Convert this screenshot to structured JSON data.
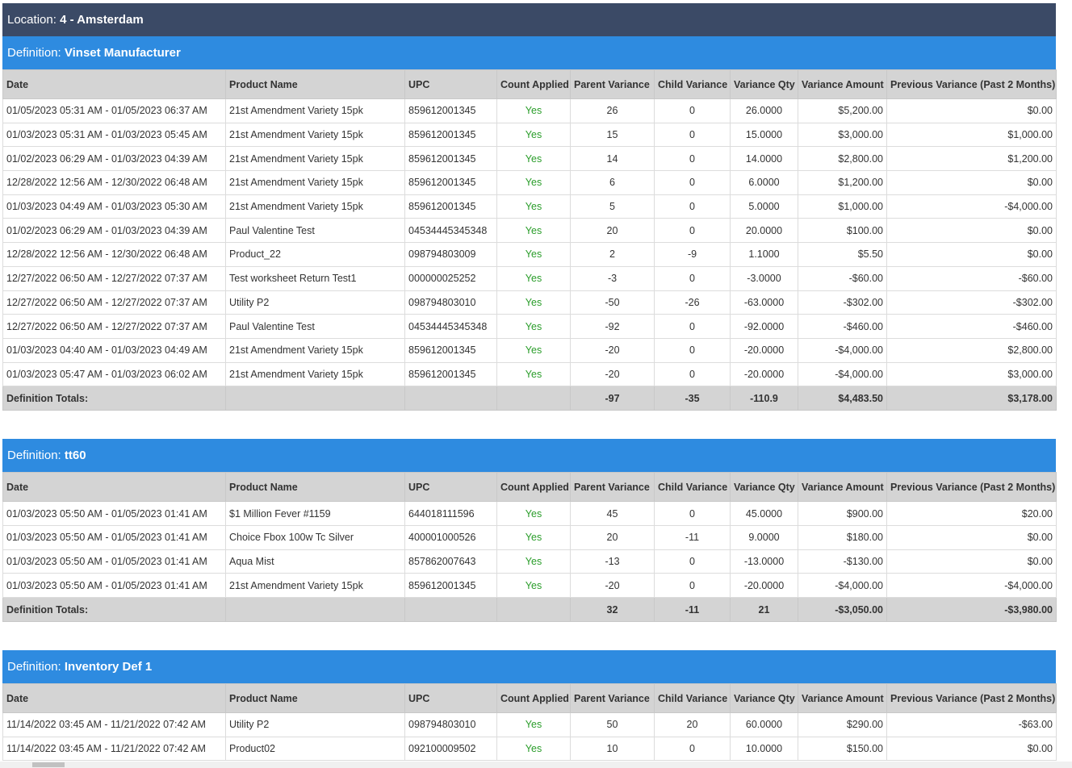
{
  "location": {
    "label": "Location:",
    "value": "4 - Amsterdam"
  },
  "columns": [
    "Date",
    "Product Name",
    "UPC",
    "Count Applied",
    "Parent Variance",
    "Child Variance",
    "Variance Qty",
    "Variance Amount",
    "Previous Variance (Past 2 Months)"
  ],
  "totals_label": "Definition Totals:",
  "definition_label": "Definition:",
  "sections": [
    {
      "name": "Vinset Manufacturer",
      "rows": [
        [
          "01/05/2023 05:31 AM - 01/05/2023 06:37 AM",
          "21st Amendment Variety 15pk",
          "859612001345",
          "Yes",
          "26",
          "0",
          "26.0000",
          "$5,200.00",
          "$0.00"
        ],
        [
          "01/03/2023 05:31 AM - 01/03/2023 05:45 AM",
          "21st Amendment Variety 15pk",
          "859612001345",
          "Yes",
          "15",
          "0",
          "15.0000",
          "$3,000.00",
          "$1,000.00"
        ],
        [
          "01/02/2023 06:29 AM - 01/03/2023 04:39 AM",
          "21st Amendment Variety 15pk",
          "859612001345",
          "Yes",
          "14",
          "0",
          "14.0000",
          "$2,800.00",
          "$1,200.00"
        ],
        [
          "12/28/2022 12:56 AM - 12/30/2022 06:48 AM",
          "21st Amendment Variety 15pk",
          "859612001345",
          "Yes",
          "6",
          "0",
          "6.0000",
          "$1,200.00",
          "$0.00"
        ],
        [
          "01/03/2023 04:49 AM - 01/03/2023 05:30 AM",
          "21st Amendment Variety 15pk",
          "859612001345",
          "Yes",
          "5",
          "0",
          "5.0000",
          "$1,000.00",
          "-$4,000.00"
        ],
        [
          "01/02/2023 06:29 AM - 01/03/2023 04:39 AM",
          "Paul Valentine Test",
          "04534445345348",
          "Yes",
          "20",
          "0",
          "20.0000",
          "$100.00",
          "$0.00"
        ],
        [
          "12/28/2022 12:56 AM - 12/30/2022 06:48 AM",
          "Product_22",
          "098794803009",
          "Yes",
          "2",
          "-9",
          "1.1000",
          "$5.50",
          "$0.00"
        ],
        [
          "12/27/2022 06:50 AM - 12/27/2022 07:37 AM",
          "Test worksheet Return Test1",
          "000000025252",
          "Yes",
          "-3",
          "0",
          "-3.0000",
          "-$60.00",
          "-$60.00"
        ],
        [
          "12/27/2022 06:50 AM - 12/27/2022 07:37 AM",
          "Utility P2",
          "098794803010",
          "Yes",
          "-50",
          "-26",
          "-63.0000",
          "-$302.00",
          "-$302.00"
        ],
        [
          "12/27/2022 06:50 AM - 12/27/2022 07:37 AM",
          "Paul Valentine Test",
          "04534445345348",
          "Yes",
          "-92",
          "0",
          "-92.0000",
          "-$460.00",
          "-$460.00"
        ],
        [
          "01/03/2023 04:40 AM - 01/03/2023 04:49 AM",
          "21st Amendment Variety 15pk",
          "859612001345",
          "Yes",
          "-20",
          "0",
          "-20.0000",
          "-$4,000.00",
          "$2,800.00"
        ],
        [
          "01/03/2023 05:47 AM - 01/03/2023 06:02 AM",
          "21st Amendment Variety 15pk",
          "859612001345",
          "Yes",
          "-20",
          "0",
          "-20.0000",
          "-$4,000.00",
          "$3,000.00"
        ]
      ],
      "totals": [
        "",
        "",
        "",
        "-97",
        "-35",
        "-110.9",
        "$4,483.50",
        "$3,178.00"
      ]
    },
    {
      "name": "tt60",
      "rows": [
        [
          "01/03/2023 05:50 AM - 01/05/2023 01:41 AM",
          "$1 Million Fever #1159",
          "644018111596",
          "Yes",
          "45",
          "0",
          "45.0000",
          "$900.00",
          "$20.00"
        ],
        [
          "01/03/2023 05:50 AM - 01/05/2023 01:41 AM",
          "Choice Fbox 100w Tc Silver",
          "400001000526",
          "Yes",
          "20",
          "-11",
          "9.0000",
          "$180.00",
          "$0.00"
        ],
        [
          "01/03/2023 05:50 AM - 01/05/2023 01:41 AM",
          "Aqua Mist",
          "857862007643",
          "Yes",
          "-13",
          "0",
          "-13.0000",
          "-$130.00",
          "$0.00"
        ],
        [
          "01/03/2023 05:50 AM - 01/05/2023 01:41 AM",
          "21st Amendment Variety 15pk",
          "859612001345",
          "Yes",
          "-20",
          "0",
          "-20.0000",
          "-$4,000.00",
          "-$4,000.00"
        ]
      ],
      "totals": [
        "",
        "",
        "",
        "32",
        "-11",
        "21",
        "-$3,050.00",
        "-$3,980.00"
      ]
    },
    {
      "name": "Inventory Def 1",
      "rows": [
        [
          "11/14/2022 03:45 AM - 11/21/2022 07:42 AM",
          "Utility P2",
          "098794803010",
          "Yes",
          "50",
          "20",
          "60.0000",
          "$290.00",
          "-$63.00"
        ],
        [
          "11/14/2022 03:45 AM - 11/21/2022 07:42 AM",
          "Product02",
          "092100009502",
          "Yes",
          "10",
          "0",
          "10.0000",
          "$150.00",
          "$0.00"
        ]
      ],
      "totals": null
    }
  ]
}
